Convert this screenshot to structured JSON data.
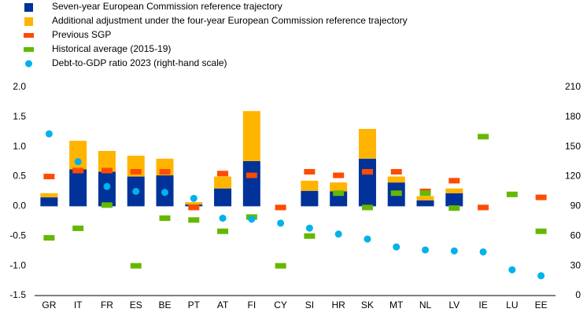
{
  "chart_data": {
    "type": "bar",
    "categories": [
      "GR",
      "IT",
      "FR",
      "ES",
      "BE",
      "PT",
      "AT",
      "FI",
      "CY",
      "SI",
      "HR",
      "SK",
      "MT",
      "NL",
      "LV",
      "IE",
      "LU",
      "EE"
    ],
    "series": [
      {
        "name": "Seven-year European Commission reference trajectory",
        "color": "#003299",
        "style": "stacked-bar",
        "values": [
          0.15,
          0.62,
          0.58,
          0.5,
          0.52,
          0.03,
          0.3,
          0.76,
          null,
          0.26,
          0.25,
          0.8,
          0.4,
          0.1,
          0.22,
          null,
          null,
          null
        ]
      },
      {
        "name": "Additional adjustment under the four-year European Commission reference trajectory",
        "color": "#ffb400",
        "style": "stacked-bar",
        "values": [
          0.07,
          0.48,
          0.35,
          0.35,
          0.28,
          0.04,
          0.2,
          0.84,
          null,
          0.17,
          0.15,
          0.5,
          0.1,
          0.07,
          0.08,
          null,
          null,
          null
        ]
      },
      {
        "name": "Previous SGP",
        "color": "#ff4b00",
        "style": "dash",
        "values": [
          0.5,
          0.6,
          0.6,
          0.58,
          0.58,
          -0.02,
          0.55,
          0.52,
          -0.02,
          0.58,
          0.52,
          0.58,
          0.58,
          0.25,
          0.43,
          -0.02,
          null,
          0.15
        ]
      },
      {
        "name": "Historical average (2015-19)",
        "color": "#65b800",
        "style": "dash",
        "values": [
          -0.53,
          -0.37,
          0.02,
          -1.0,
          -0.2,
          -0.23,
          -0.42,
          -0.18,
          -1.0,
          -0.5,
          0.22,
          -0.02,
          0.22,
          0.22,
          -0.03,
          1.17,
          0.2,
          -0.42
        ]
      },
      {
        "name": "Debt-to-GDP ratio 2023 (right-hand scale)",
        "color": "#00b1ea",
        "style": "dot",
        "axis": "y2",
        "values": [
          163,
          135,
          110,
          105,
          104,
          98,
          78,
          77,
          73,
          68,
          62,
          57,
          49,
          46,
          45,
          44,
          26,
          20
        ]
      }
    ],
    "ylim": [
      -1.5,
      2.0
    ],
    "yticks": [
      {
        "value": 2.0,
        "label": "2.0"
      },
      1.5,
      {
        "value": 1.0,
        "label": "1.0"
      },
      0.5,
      {
        "value": 0.0,
        "label": "0.0"
      },
      -0.5,
      {
        "value": -1.0,
        "label": "-1.0"
      },
      -1.5
    ],
    "y2lim": [
      0,
      210
    ],
    "y2ticks": [
      210,
      180,
      150,
      120,
      90,
      60,
      30,
      0
    ],
    "legend": "top-left"
  }
}
